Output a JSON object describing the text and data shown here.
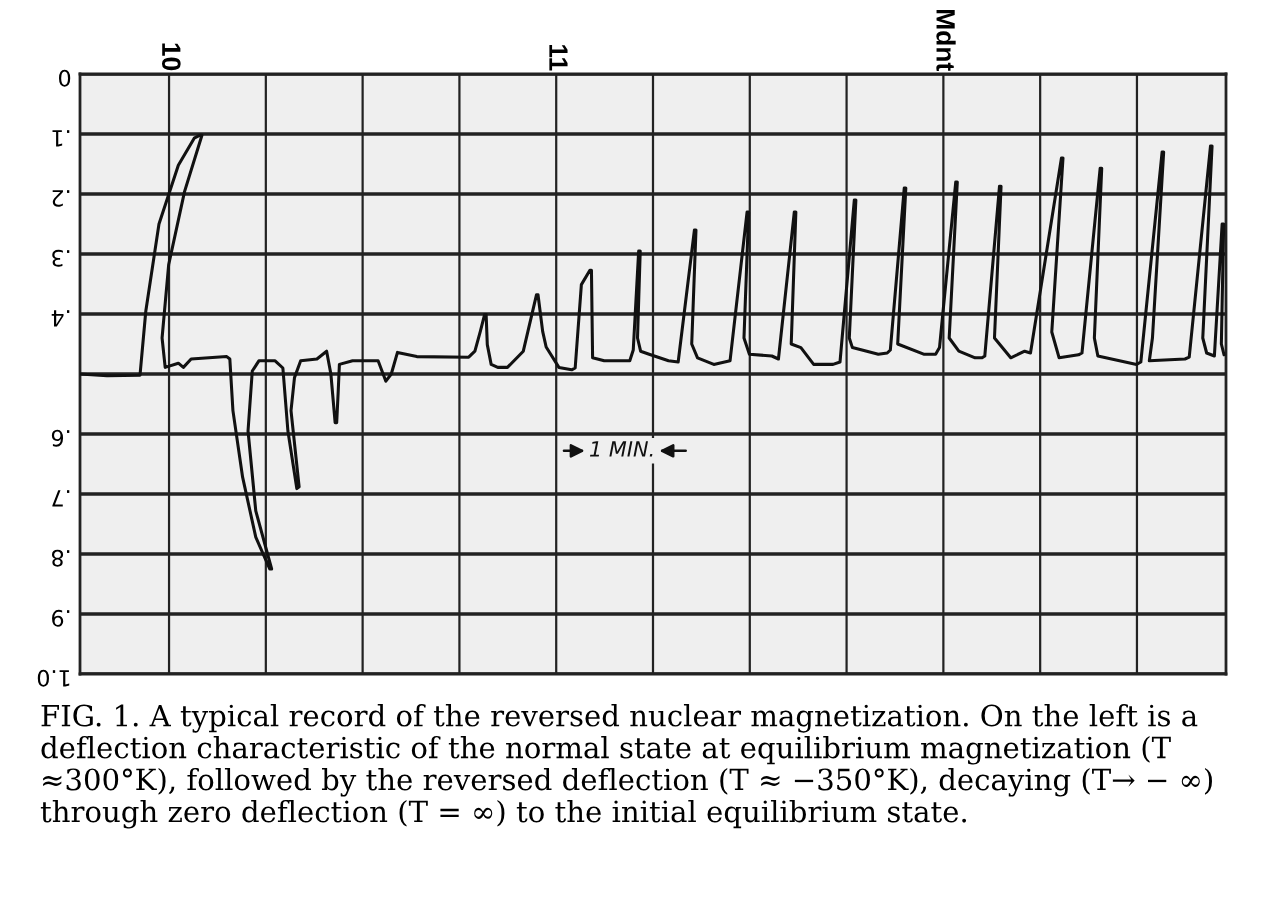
{
  "chart_data": {
    "type": "line",
    "xlim": [
      9.77,
      12.73
    ],
    "xticks": [
      10,
      {
        "value": 10.25,
        "label": null
      },
      {
        "value": 10.5,
        "label": null
      },
      {
        "value": 10.75,
        "label": null
      },
      11,
      {
        "value": 11.25,
        "label": null
      },
      {
        "value": 11.5,
        "label": null
      },
      {
        "value": 11.75,
        "label": null
      },
      {
        "value": 12,
        "label": "Mdnt"
      },
      {
        "value": 12.25,
        "label": null
      },
      {
        "value": 12.5,
        "label": null
      }
    ],
    "ylim": [
      1.0,
      0
    ],
    "yticks": [
      0,
      {
        "value": 0.1,
        "label": ".1"
      },
      {
        "value": 0.2,
        "label": ".2"
      },
      {
        "value": 0.3,
        "label": ".3"
      },
      {
        "value": 0.4,
        "label": ".4"
      },
      {
        "value": 0.5,
        "label": null
      },
      {
        "value": 0.6,
        "label": ".6"
      },
      {
        "value": 0.7,
        "label": ".7"
      },
      {
        "value": 0.8,
        "label": ".8"
      },
      {
        "value": 0.9,
        "label": ".9"
      },
      {
        "value": 1.0,
        "label": "1.0"
      }
    ],
    "grid": true,
    "series": [
      {
        "color": "#111111",
        "x": [
          9.77,
          9.84,
          9.925,
          9.94,
          9.974,
          10.024,
          10.065,
          10.08,
          10.085,
          10.04,
          9.999,
          9.982,
          9.99,
          10.024,
          10.037,
          10.057,
          10.149,
          10.157,
          10.165,
          10.19,
          10.224,
          10.26,
          10.265,
          10.224,
          10.204,
          10.215,
          10.232,
          10.274,
          10.294,
          10.307,
          10.33,
          10.336,
          10.315,
          10.324,
          10.34,
          10.382,
          10.407,
          10.418,
          10.429,
          10.433,
          10.437,
          10.44,
          10.474,
          10.54,
          10.56,
          10.574,
          10.59,
          10.64,
          10.774,
          10.79,
          10.804,
          10.815,
          10.819,
          10.822,
          10.832,
          10.849,
          10.874,
          10.915,
          10.949,
          10.953,
          10.965,
          10.974,
          11.007,
          11.04,
          11.049,
          11.065,
          11.087,
          11.091,
          11.094,
          11.124,
          11.19,
          11.199,
          11.213,
          11.217,
          11.21,
          11.218,
          11.24,
          11.29,
          11.315,
          11.357,
          11.361,
          11.35,
          11.365,
          11.407,
          11.449,
          11.493,
          11.497,
          11.485,
          11.499,
          11.557,
          11.574,
          11.615,
          11.619,
          11.607,
          11.632,
          11.665,
          11.715,
          11.733,
          11.77,
          11.774,
          11.757,
          11.765,
          11.832,
          11.855,
          11.863,
          11.899,
          11.903,
          11.882,
          11.949,
          11.98,
          11.99,
          12.032,
          12.036,
          12.015,
          12.04,
          12.082,
          12.1,
          12.107,
          12.145,
          12.149,
          12.132,
          12.174,
          12.21,
          12.225,
          12.305,
          12.309,
          12.28,
          12.299,
          12.349,
          12.358,
          12.405,
          12.409,
          12.39,
          12.399,
          12.499,
          12.51,
          12.565,
          12.569,
          12.54,
          12.532,
          12.624,
          12.635,
          12.69,
          12.694,
          12.67,
          12.68,
          12.7,
          12.72,
          12.724,
          12.718,
          12.725
        ],
        "values": [
          0.5,
          0.503,
          0.502,
          0.395,
          0.25,
          0.152,
          0.107,
          0.102,
          0.102,
          0.196,
          0.318,
          0.44,
          0.489,
          0.482,
          0.489,
          0.475,
          0.471,
          0.475,
          0.561,
          0.672,
          0.772,
          0.825,
          0.825,
          0.728,
          0.595,
          0.495,
          0.478,
          0.478,
          0.49,
          0.595,
          0.691,
          0.688,
          0.561,
          0.506,
          0.478,
          0.475,
          0.462,
          0.5,
          0.581,
          0.581,
          0.528,
          0.484,
          0.478,
          0.478,
          0.512,
          0.5,
          0.464,
          0.471,
          0.472,
          0.462,
          0.429,
          0.401,
          0.401,
          0.451,
          0.484,
          0.489,
          0.489,
          0.462,
          0.368,
          0.368,
          0.429,
          0.455,
          0.489,
          0.493,
          0.49,
          0.351,
          0.327,
          0.327,
          0.473,
          0.478,
          0.478,
          0.46,
          0.295,
          0.295,
          0.44,
          0.462,
          0.467,
          0.478,
          0.48,
          0.26,
          0.26,
          0.45,
          0.473,
          0.484,
          0.478,
          0.23,
          0.23,
          0.44,
          0.467,
          0.47,
          0.475,
          0.23,
          0.23,
          0.45,
          0.456,
          0.484,
          0.484,
          0.48,
          0.21,
          0.21,
          0.44,
          0.456,
          0.467,
          0.465,
          0.46,
          0.19,
          0.19,
          0.45,
          0.467,
          0.467,
          0.456,
          0.18,
          0.18,
          0.44,
          0.462,
          0.473,
          0.473,
          0.47,
          0.187,
          0.187,
          0.44,
          0.473,
          0.462,
          0.465,
          0.14,
          0.14,
          0.43,
          0.473,
          0.468,
          0.465,
          0.157,
          0.157,
          0.44,
          0.47,
          0.484,
          0.48,
          0.13,
          0.13,
          0.44,
          0.478,
          0.475,
          0.472,
          0.12,
          0.12,
          0.44,
          0.465,
          0.47,
          0.25,
          0.25,
          0.45,
          0.468
        ]
      }
    ],
    "annotations": [
      "1 MIN.",
      "FIG. 1. A typical record of the reversed nuclear magnetization. On the left is a deflection characteristic of the normal state at equilibrium magnetization (T ≈300°K), followed by the reversed deflection (T ≈ −350°K), decaying (T→ − ∞) through zero deflection (T = ∞) to the initial equilibrium state."
    ]
  }
}
